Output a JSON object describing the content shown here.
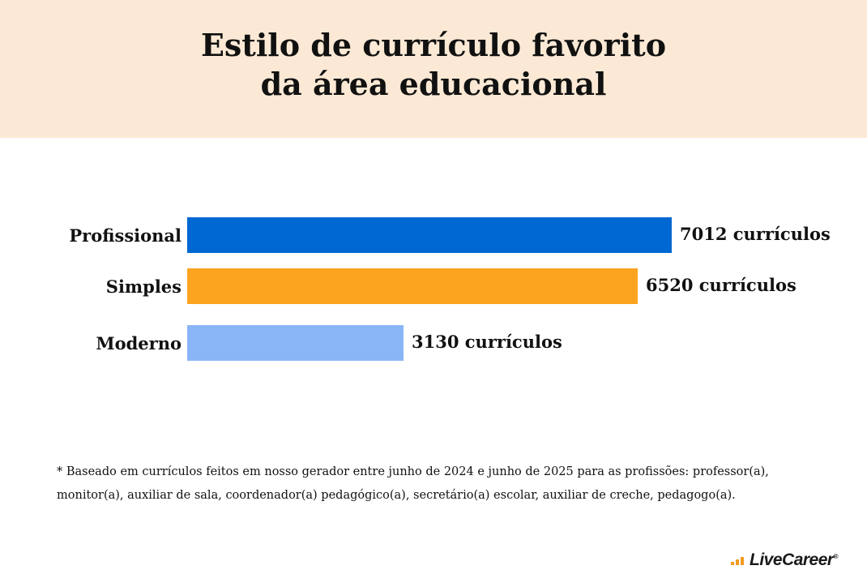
{
  "title": {
    "line1": "Estilo de currículo favorito",
    "line2": "da área educacional"
  },
  "chart_data": {
    "type": "bar",
    "orientation": "horizontal",
    "title": "Estilo de currículo favorito da área educacional",
    "categories": [
      "Profissional",
      "Simples",
      "Moderno"
    ],
    "values": [
      7012,
      6520,
      3130
    ],
    "value_labels": [
      "7012 currículos",
      "6520 currículos",
      "3130 currículos"
    ],
    "colors": [
      "#0068d3",
      "#fca31f",
      "#8ab6f8"
    ],
    "xlim": [
      0,
      7012
    ],
    "grid": false,
    "legend": "none"
  },
  "footnote": {
    "line1": "* Baseado em currículos feitos em nosso gerador entre junho de 2024 e junho de 2025 para as profissões: professor(a),",
    "line2": "monitor(a), auxiliar de sala, coordenador(a) pedagógico(a), secretário(a) escolar, auxiliar de creche, pedagogo(a)."
  },
  "logo": {
    "text": "LiveCareer",
    "trademark": "®",
    "colors": [
      "#f39a1f",
      "#1a1a1a"
    ]
  }
}
